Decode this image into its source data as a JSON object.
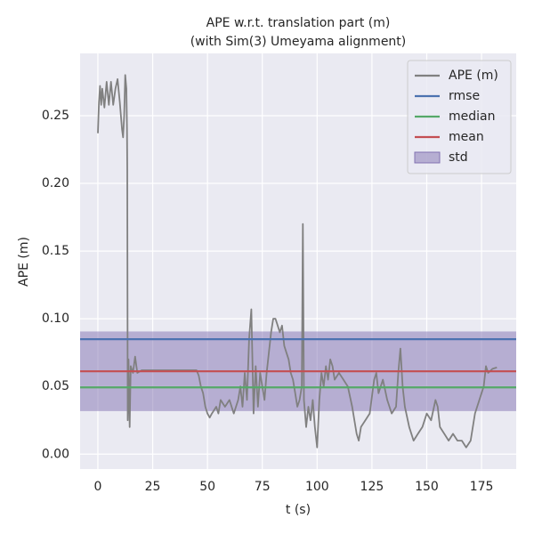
{
  "chart_data": {
    "type": "line",
    "title": "APE w.r.t. translation part (m)",
    "subtitle": "(with Sim(3) Umeyama alignment)",
    "xlabel": "t (s)",
    "ylabel": "APE (m)",
    "xlim": [
      -8.1,
      190.8
    ],
    "ylim": [
      -0.011,
      0.296
    ],
    "xticks": [
      0,
      25,
      50,
      75,
      100,
      125,
      150,
      175
    ],
    "yticks": [
      {
        "value": 0,
        "label": "0.00"
      },
      {
        "value": 0.05,
        "label": "0.05"
      },
      {
        "value": 0.1,
        "label": "0.10"
      },
      {
        "value": 0.15,
        "label": "0.15"
      },
      {
        "value": 0.2,
        "label": "0.20"
      },
      {
        "value": 0.25,
        "label": "0.25"
      }
    ],
    "grid": true,
    "legend": "upper right",
    "x": [
      0,
      0.5,
      1,
      1.5,
      2,
      3,
      4,
      5,
      6,
      7,
      8,
      9,
      10,
      11,
      11.5,
      12,
      12.5,
      13,
      13.3,
      13.4,
      13.6,
      14,
      14.5,
      15,
      16,
      17,
      18,
      20,
      25,
      30,
      35,
      40,
      45,
      46,
      47,
      48,
      49,
      50,
      51,
      52,
      54,
      55,
      56,
      58,
      60,
      62,
      64,
      65,
      66,
      67,
      68,
      69,
      70,
      71,
      72,
      73,
      74,
      75,
      76,
      77,
      78,
      79,
      80,
      81,
      82,
      83,
      84,
      85,
      86,
      87,
      88,
      89,
      90,
      91,
      92,
      93,
      93.5,
      94,
      95,
      96,
      97,
      98,
      99,
      100,
      101,
      102,
      103,
      104,
      105,
      106,
      107,
      108,
      110,
      112,
      114,
      116,
      118,
      119,
      120,
      122,
      124,
      126,
      127,
      128,
      130,
      132,
      134,
      136,
      137,
      138,
      139,
      140,
      142,
      144,
      146,
      148,
      150,
      152,
      154,
      155,
      156,
      158,
      160,
      162,
      164,
      166,
      168,
      170,
      172,
      174,
      176,
      177,
      178,
      180,
      182
    ],
    "series": [
      {
        "name": "APE (m)",
        "color": "#808080",
        "values": [
          0.237,
          0.26,
          0.272,
          0.258,
          0.27,
          0.256,
          0.275,
          0.258,
          0.275,
          0.258,
          0.27,
          0.277,
          0.26,
          0.24,
          0.234,
          0.25,
          0.28,
          0.27,
          0.24,
          0.21,
          0.025,
          0.07,
          0.02,
          0.065,
          0.06,
          0.072,
          0.06,
          0.062,
          0.062,
          0.062,
          0.062,
          0.062,
          0.062,
          0.058,
          0.05,
          0.045,
          0.035,
          0.03,
          0.027,
          0.03,
          0.035,
          0.03,
          0.04,
          0.035,
          0.04,
          0.03,
          0.04,
          0.05,
          0.035,
          0.06,
          0.04,
          0.085,
          0.107,
          0.03,
          0.065,
          0.035,
          0.06,
          0.05,
          0.04,
          0.06,
          0.075,
          0.09,
          0.1,
          0.1,
          0.095,
          0.09,
          0.095,
          0.08,
          0.075,
          0.07,
          0.06,
          0.055,
          0.045,
          0.035,
          0.04,
          0.05,
          0.17,
          0.04,
          0.02,
          0.035,
          0.025,
          0.04,
          0.02,
          0.005,
          0.04,
          0.06,
          0.05,
          0.065,
          0.055,
          0.07,
          0.065,
          0.055,
          0.06,
          0.055,
          0.05,
          0.035,
          0.015,
          0.01,
          0.02,
          0.025,
          0.03,
          0.055,
          0.06,
          0.045,
          0.055,
          0.04,
          0.03,
          0.035,
          0.06,
          0.078,
          0.05,
          0.035,
          0.02,
          0.01,
          0.015,
          0.02,
          0.03,
          0.025,
          0.04,
          0.035,
          0.02,
          0.015,
          0.01,
          0.015,
          0.01,
          0.01,
          0.005,
          0.01,
          0.03,
          0.04,
          0.05,
          0.065,
          0.06,
          0.063,
          0.064
        ]
      }
    ],
    "reference_lines": [
      {
        "name": "rmse",
        "color": "#4c72b0",
        "value": 0.0849
      },
      {
        "name": "median",
        "color": "#55a868",
        "value": 0.0493
      },
      {
        "name": "mean",
        "color": "#c44e52",
        "value": 0.0612
      }
    ],
    "band": {
      "name": "std",
      "color": "#8172b2",
      "value": 0.0294
    }
  }
}
